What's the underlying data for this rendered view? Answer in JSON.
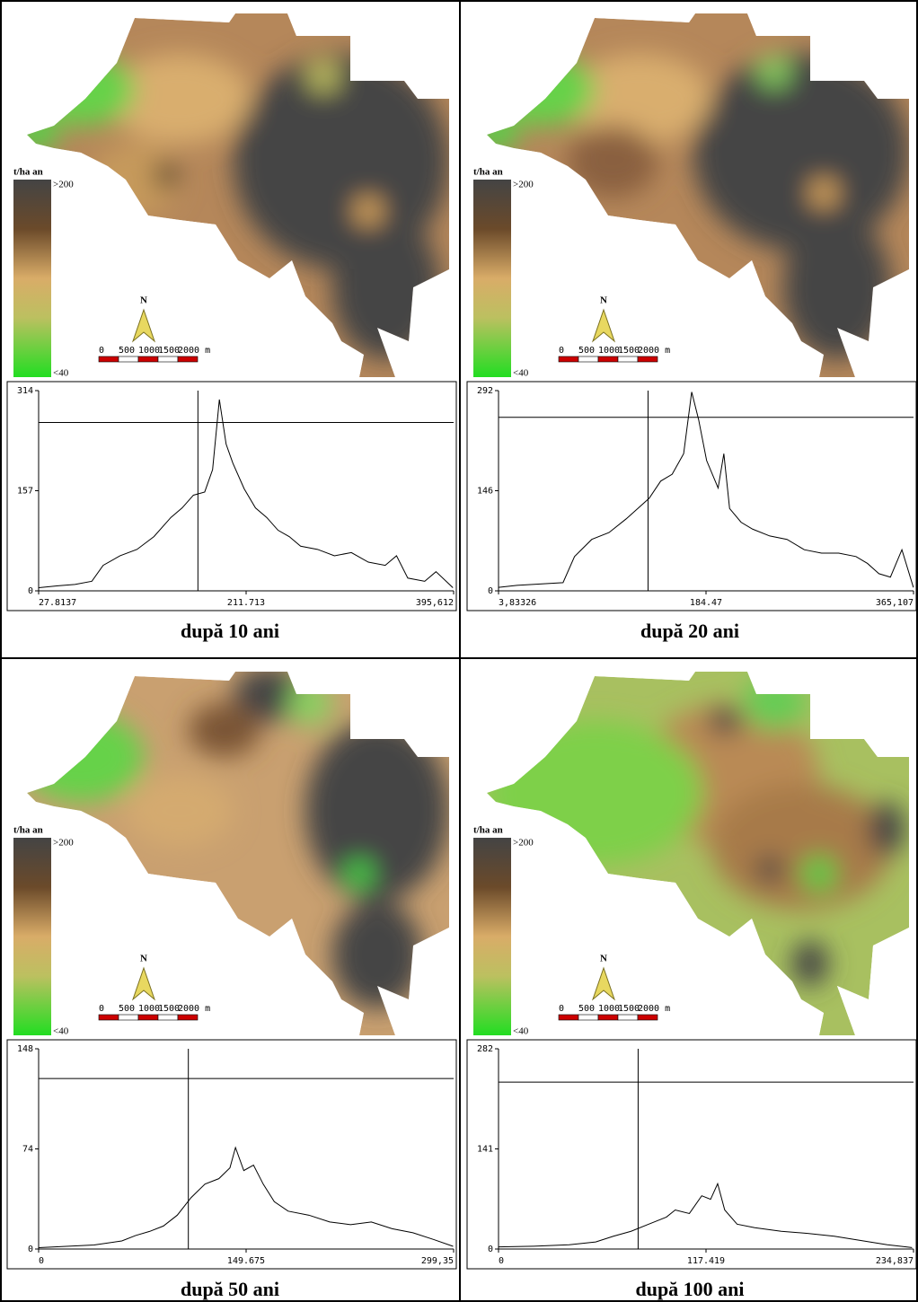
{
  "chart_data": [
    {
      "type": "line",
      "color": "#000000",
      "x": [
        28,
        45,
        60,
        75,
        85,
        100,
        115,
        130,
        145,
        155,
        165,
        175,
        182,
        188,
        194,
        200,
        210,
        220,
        230,
        240,
        250,
        260,
        275,
        290,
        305,
        320,
        335,
        345,
        355,
        370,
        380,
        395
      ],
      "values": [
        5,
        8,
        10,
        15,
        40,
        55,
        65,
        85,
        115,
        130,
        150,
        155,
        190,
        300,
        230,
        200,
        160,
        130,
        115,
        95,
        85,
        70,
        65,
        55,
        60,
        45,
        40,
        55,
        20,
        15,
        30,
        5
      ],
      "xlim": [
        27.8137,
        395.612
      ],
      "ylim": [
        0,
        314
      ],
      "xticks": [
        27.8137,
        211.713,
        {
          "value": 395.612,
          "label": "395,612"
        }
      ],
      "yticks": [
        0,
        157,
        314
      ],
      "cursor_x": 169,
      "cursor_y": 264
    },
    {
      "type": "line",
      "color": "#000000",
      "x": [
        4,
        20,
        40,
        60,
        70,
        85,
        100,
        115,
        125,
        135,
        145,
        155,
        165,
        172,
        178,
        185,
        195,
        200,
        205,
        215,
        225,
        240,
        255,
        270,
        285,
        300,
        315,
        325,
        335,
        345,
        355,
        365
      ],
      "values": [
        5,
        8,
        10,
        12,
        50,
        75,
        85,
        105,
        120,
        135,
        160,
        170,
        200,
        290,
        250,
        190,
        150,
        200,
        120,
        100,
        90,
        80,
        75,
        60,
        55,
        55,
        50,
        40,
        25,
        20,
        60,
        5
      ],
      "xlim": [
        3.83326,
        365.107
      ],
      "ylim": [
        0,
        292
      ],
      "xticks": [
        {
          "value": 3.83326,
          "label": "3,83326"
        },
        184.47,
        {
          "value": 365.107,
          "label": "365,107"
        }
      ],
      "yticks": [
        0,
        146,
        292
      ],
      "cursor_x": 134,
      "cursor_y": 253
    },
    {
      "type": "line",
      "color": "#000000",
      "x": [
        0,
        20,
        40,
        60,
        70,
        80,
        90,
        100,
        110,
        120,
        130,
        138,
        142,
        148,
        155,
        162,
        170,
        180,
        195,
        210,
        225,
        240,
        255,
        270,
        285,
        299
      ],
      "values": [
        1,
        2,
        3,
        6,
        10,
        13,
        17,
        25,
        38,
        48,
        52,
        60,
        75,
        58,
        62,
        48,
        35,
        28,
        25,
        20,
        18,
        20,
        15,
        12,
        7,
        2
      ],
      "xlim": [
        0,
        299.35
      ],
      "ylim": [
        0,
        148
      ],
      "xticks": [
        0,
        149.675,
        {
          "value": 299.35,
          "label": "299,35"
        }
      ],
      "yticks": [
        0,
        74,
        148
      ],
      "cursor_x": 108,
      "cursor_y": 126
    },
    {
      "type": "line",
      "color": "#000000",
      "x": [
        0,
        20,
        40,
        55,
        65,
        75,
        85,
        95,
        100,
        108,
        115,
        120,
        124,
        128,
        135,
        145,
        160,
        175,
        190,
        205,
        220,
        234
      ],
      "values": [
        3,
        4,
        6,
        10,
        18,
        25,
        35,
        45,
        55,
        50,
        75,
        70,
        92,
        55,
        35,
        30,
        25,
        22,
        18,
        12,
        6,
        2
      ],
      "xlim": [
        0,
        234.837
      ],
      "ylim": [
        0,
        282
      ],
      "xticks": [
        0,
        117.419,
        {
          "value": 234.837,
          "label": "234,837"
        }
      ],
      "yticks": [
        0,
        141,
        282
      ],
      "cursor_x": 79,
      "cursor_y": 235
    }
  ],
  "panels": [
    {
      "caption": "după 10 ani",
      "legend_unit": "t/ha an",
      "legend_max": ">200",
      "legend_min": "<40",
      "north": "N",
      "scale_labels": [
        "0",
        "500",
        "1000",
        "1500",
        "2000 m"
      ]
    },
    {
      "caption": "după 20 ani",
      "legend_unit": "t/ha an",
      "legend_max": ">200",
      "legend_min": "<40",
      "north": "N",
      "scale_labels": [
        "0",
        "500",
        "1000",
        "1500",
        "2000 m"
      ]
    },
    {
      "caption": "după 50 ani",
      "legend_unit": "t/ha an",
      "legend_max": ">200",
      "legend_min": "<40",
      "north": "N",
      "scale_labels": [
        "0",
        "500",
        "1000",
        "1500",
        "2000 m"
      ]
    },
    {
      "caption": "după 100 ani",
      "legend_unit": "t/ha an",
      "legend_max": ">200",
      "legend_min": "<40",
      "north": "N",
      "scale_labels": [
        "0",
        "500",
        "1000",
        "1500",
        "2000 m"
      ]
    }
  ]
}
